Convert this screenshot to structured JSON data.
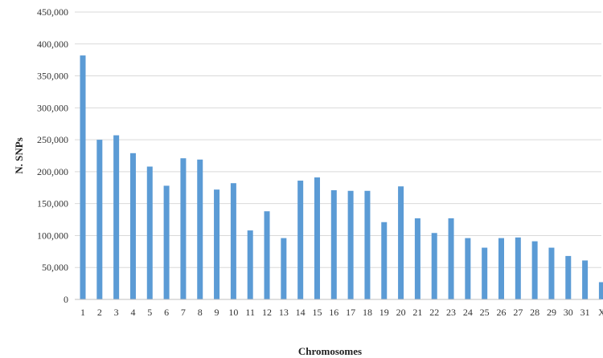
{
  "chart_data": {
    "type": "bar",
    "title": "",
    "xlabel": "Chromosomes",
    "ylabel": "N. SNPs",
    "categories": [
      "1",
      "2",
      "3",
      "4",
      "5",
      "6",
      "7",
      "8",
      "9",
      "10",
      "11",
      "12",
      "13",
      "14",
      "15",
      "16",
      "17",
      "18",
      "19",
      "20",
      "21",
      "22",
      "23",
      "24",
      "25",
      "26",
      "27",
      "28",
      "29",
      "30",
      "31",
      "X"
    ],
    "values": [
      382000,
      250000,
      257000,
      229000,
      208000,
      178000,
      221000,
      219000,
      172000,
      182000,
      108000,
      138000,
      96000,
      186000,
      191000,
      171000,
      170000,
      170000,
      121000,
      177000,
      127000,
      104000,
      127000,
      96000,
      81000,
      96000,
      97000,
      91000,
      81000,
      68000,
      61000,
      27000
    ],
    "ylim": [
      0,
      450000
    ],
    "yticks": [
      0,
      50000,
      100000,
      150000,
      200000,
      250000,
      300000,
      350000,
      400000,
      450000
    ],
    "ytick_labels": [
      "0",
      "50,000",
      "100,000",
      "150,000",
      "200,000",
      "250,000",
      "300,000",
      "350,000",
      "400,000",
      "450,000"
    ],
    "grid": true,
    "bar_color": "#5b9bd5",
    "grid_color": "#d9d9d9"
  }
}
